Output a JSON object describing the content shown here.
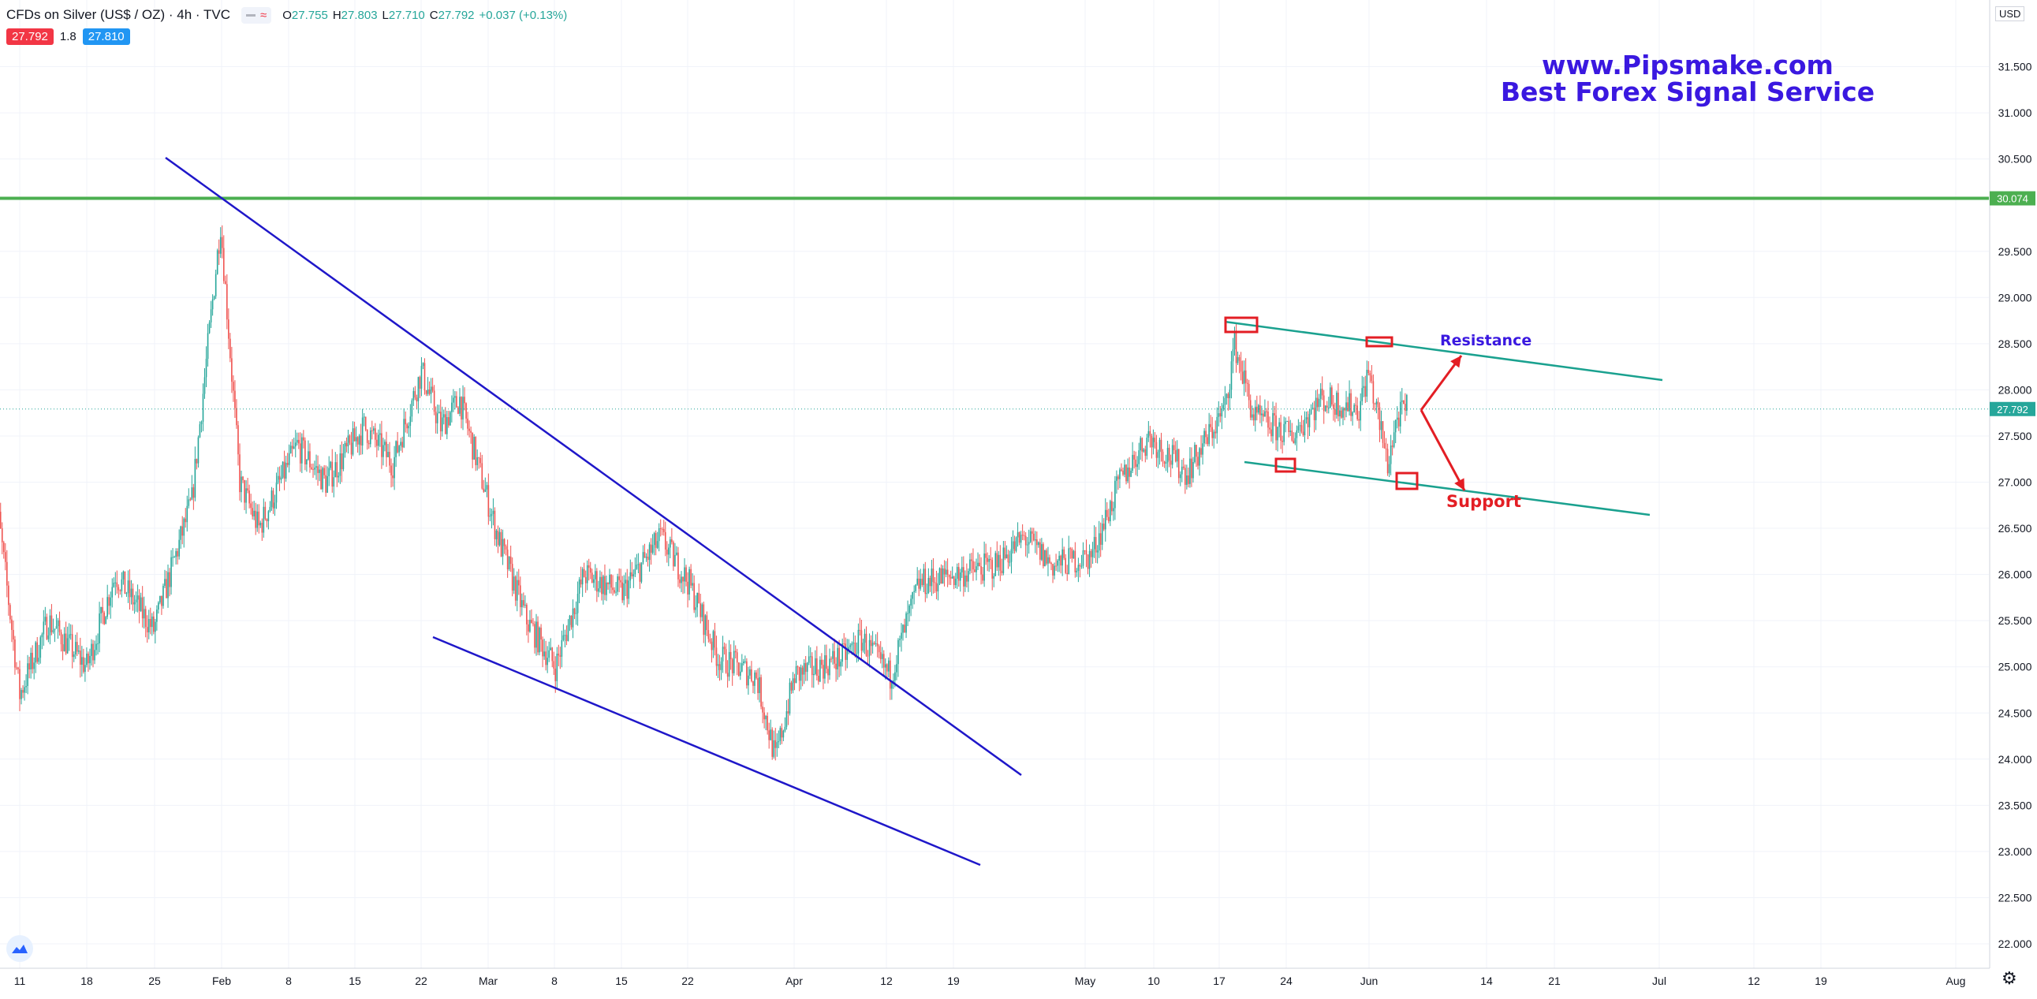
{
  "header": {
    "symbol_title": "CFDs on Silver (US$ / OZ) · 4h · TVC",
    "ohlc": {
      "o_label": "O",
      "o": "27.755",
      "h_label": "H",
      "h": "27.803",
      "l_label": "L",
      "l": "27.710",
      "c_label": "C",
      "c": "27.792",
      "change": "+0.037 (+0.13%)"
    },
    "sell_price": "27.792",
    "spread": "1.8",
    "buy_price": "27.810"
  },
  "watermark": {
    "line1": "www.Pipsmake.com",
    "line2": "Best Forex Signal Service"
  },
  "currency_badge": "USD",
  "colors": {
    "up": "#26a69a",
    "down": "#ef5350",
    "trendline": "#1f17c9",
    "channel": "#1aa18f",
    "horizontal_level": "#4caf50",
    "annotation_red": "#e31e24",
    "annotation_blue": "#3a18e0"
  },
  "chart_data": {
    "type": "candlestick",
    "timeframe": "4h",
    "x_ticks": [
      "11",
      "18",
      "25",
      "Feb",
      "8",
      "15",
      "22",
      "Mar",
      "8",
      "15",
      "22",
      "Apr",
      "12",
      "19",
      "May",
      "10",
      "17",
      "24",
      "Jun",
      "14",
      "21",
      "Jul",
      "12",
      "19",
      "Aug"
    ],
    "y_ticks": [
      "22.000",
      "22.500",
      "23.000",
      "23.500",
      "24.000",
      "24.500",
      "25.000",
      "25.500",
      "26.000",
      "26.500",
      "27.000",
      "27.500",
      "28.000",
      "28.500",
      "29.000",
      "29.500",
      "30.500",
      "31.000",
      "31.500"
    ],
    "ylim": [
      21.9,
      32.1
    ],
    "grid": true,
    "last_price": "27.792",
    "horizontal_level": "30.074",
    "close_path": [
      {
        "x": "2021-01-08",
        "y": 27.3
      },
      {
        "x": "2021-01-11",
        "y": 24.7
      },
      {
        "x": "2021-01-14",
        "y": 25.5
      },
      {
        "x": "2021-01-18",
        "y": 25.0
      },
      {
        "x": "2021-01-21",
        "y": 26.0
      },
      {
        "x": "2021-01-25",
        "y": 25.4
      },
      {
        "x": "2021-01-29",
        "y": 26.8
      },
      {
        "x": "2021-02-01",
        "y": 29.8
      },
      {
        "x": "2021-02-03",
        "y": 27.0
      },
      {
        "x": "2021-02-05",
        "y": 26.5
      },
      {
        "x": "2021-02-09",
        "y": 27.4
      },
      {
        "x": "2021-02-12",
        "y": 27.0
      },
      {
        "x": "2021-02-16",
        "y": 27.6
      },
      {
        "x": "2021-02-19",
        "y": 27.2
      },
      {
        "x": "2021-02-22",
        "y": 28.2
      },
      {
        "x": "2021-02-24",
        "y": 27.6
      },
      {
        "x": "2021-02-26",
        "y": 27.9
      },
      {
        "x": "2021-03-02",
        "y": 26.4
      },
      {
        "x": "2021-03-05",
        "y": 25.5
      },
      {
        "x": "2021-03-08",
        "y": 25.0
      },
      {
        "x": "2021-03-11",
        "y": 26.0
      },
      {
        "x": "2021-03-15",
        "y": 25.8
      },
      {
        "x": "2021-03-19",
        "y": 26.4
      },
      {
        "x": "2021-03-22",
        "y": 25.9
      },
      {
        "x": "2021-03-25",
        "y": 25.1
      },
      {
        "x": "2021-03-29",
        "y": 24.9
      },
      {
        "x": "2021-03-31",
        "y": 24.0
      },
      {
        "x": "2021-04-02",
        "y": 24.9
      },
      {
        "x": "2021-04-07",
        "y": 25.1
      },
      {
        "x": "2021-04-09",
        "y": 25.3
      },
      {
        "x": "2021-04-12",
        "y": 24.9
      },
      {
        "x": "2021-04-15",
        "y": 25.9
      },
      {
        "x": "2021-04-19",
        "y": 26.0
      },
      {
        "x": "2021-04-23",
        "y": 26.1
      },
      {
        "x": "2021-04-26",
        "y": 26.4
      },
      {
        "x": "2021-04-29",
        "y": 26.1
      },
      {
        "x": "2021-05-03",
        "y": 26.2
      },
      {
        "x": "2021-05-06",
        "y": 27.0
      },
      {
        "x": "2021-05-09",
        "y": 27.5
      },
      {
        "x": "2021-05-13",
        "y": 27.1
      },
      {
        "x": "2021-05-17",
        "y": 27.8
      },
      {
        "x": "2021-05-18",
        "y": 28.5
      },
      {
        "x": "2021-05-20",
        "y": 27.7
      },
      {
        "x": "2021-05-24",
        "y": 27.5
      },
      {
        "x": "2021-05-27",
        "y": 27.9
      },
      {
        "x": "2021-05-31",
        "y": 27.8
      },
      {
        "x": "2021-06-01",
        "y": 28.2
      },
      {
        "x": "2021-06-03",
        "y": 27.2
      },
      {
        "x": "2021-06-04",
        "y": 27.7
      },
      {
        "x": "2021-06-05",
        "y": 27.79
      }
    ],
    "annotations": {
      "resistance_label": "Resistance",
      "support_label": "Support"
    }
  }
}
